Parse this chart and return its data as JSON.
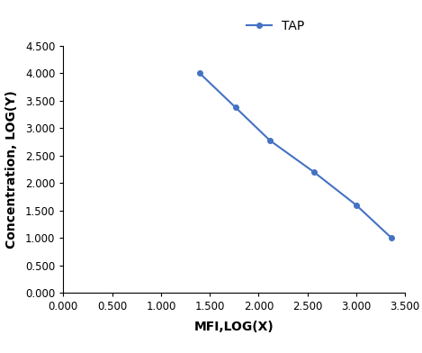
{
  "x": [
    1.398,
    1.763,
    2.114,
    2.568,
    3.0,
    3.362
  ],
  "y": [
    4.0,
    3.38,
    2.78,
    2.2,
    1.6,
    1.0
  ],
  "line_color": "#4472C4",
  "marker": "o",
  "marker_size": 4,
  "line_width": 1.5,
  "legend_label": "TAP",
  "xlabel": "MFI,LOG(X)",
  "ylabel": "Concentration, LOG(Y)",
  "xlim": [
    0.0,
    3.5
  ],
  "ylim": [
    0.0,
    4.5
  ],
  "xticks": [
    0.0,
    0.5,
    1.0,
    1.5,
    2.0,
    2.5,
    3.0,
    3.5
  ],
  "yticks": [
    0.0,
    0.5,
    1.0,
    1.5,
    2.0,
    2.5,
    3.0,
    3.5,
    4.0,
    4.5
  ],
  "label_fontsize": 10,
  "tick_fontsize": 8.5,
  "legend_fontsize": 10,
  "background_color": "#ffffff"
}
